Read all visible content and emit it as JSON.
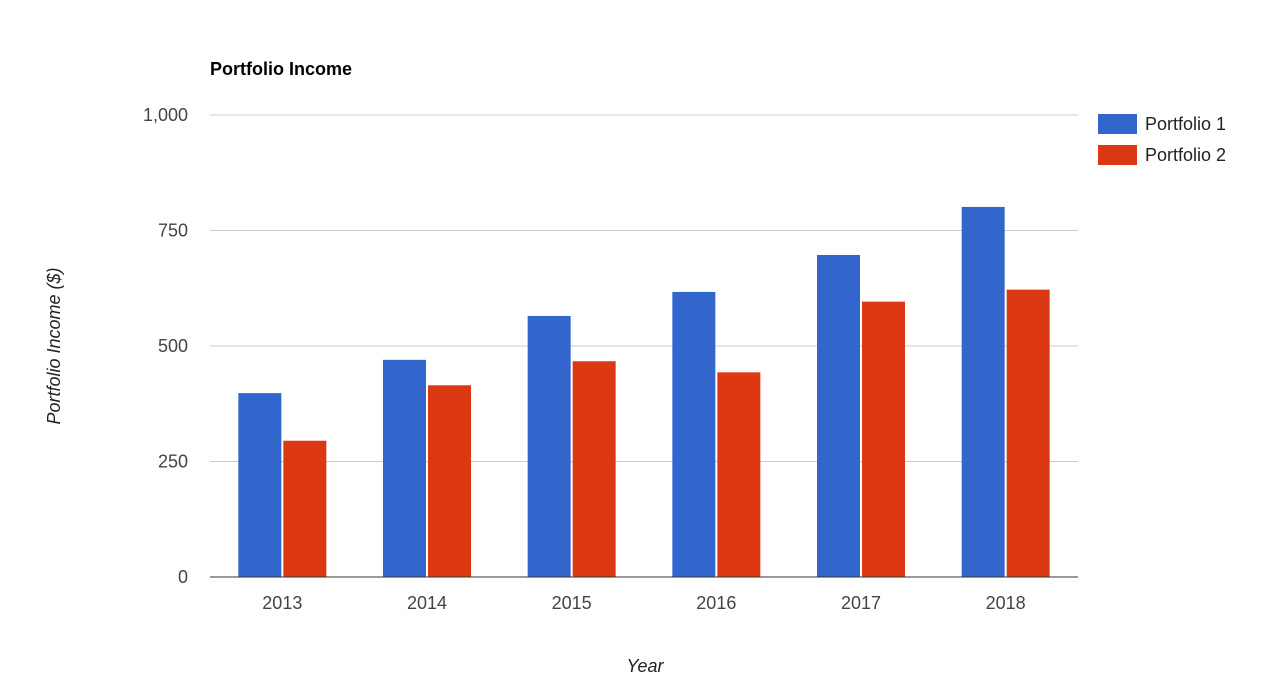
{
  "chart_data": {
    "type": "bar",
    "title": "Portfolio Income",
    "xlabel": "Year",
    "ylabel": "Portfolio Income ($)",
    "categories": [
      "2013",
      "2014",
      "2015",
      "2016",
      "2017",
      "2018"
    ],
    "series": [
      {
        "name": "Portfolio 1",
        "color": "#3366cc",
        "values": [
          398,
          470,
          565,
          617,
          697,
          801
        ]
      },
      {
        "name": "Portfolio 2",
        "color": "#dc3912",
        "values": [
          295,
          415,
          467,
          443,
          596,
          622
        ]
      }
    ],
    "ylim": [
      0,
      1000
    ],
    "yticks": [
      0,
      250,
      500,
      750,
      1000
    ],
    "ytick_labels": [
      "0",
      "250",
      "500",
      "750",
      "1,000"
    ],
    "grid": true,
    "legend_position": "right"
  }
}
